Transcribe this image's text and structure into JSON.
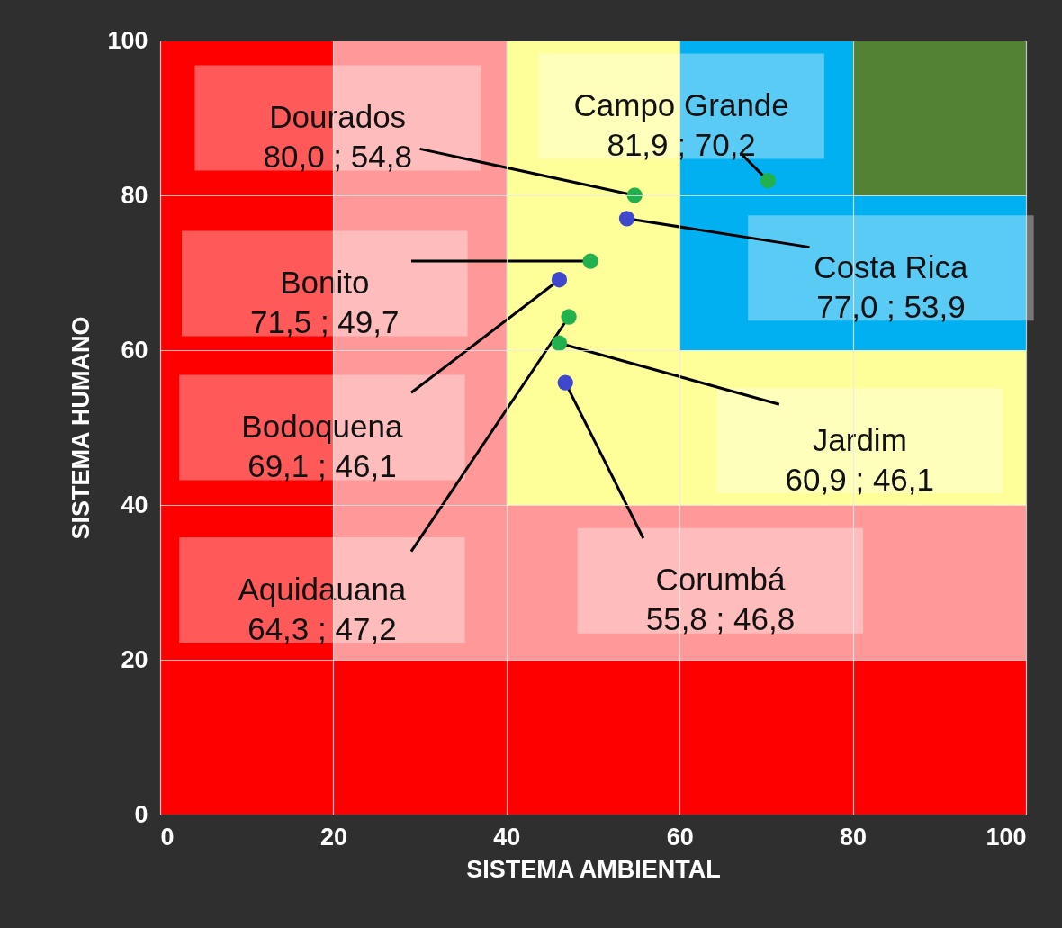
{
  "chart_data": {
    "type": "scatter",
    "xlabel": "SISTEMA AMBIENTAL",
    "ylabel": "SISTEMA HUMANO",
    "xlim": [
      0,
      100
    ],
    "ylim": [
      0,
      100
    ],
    "xticks": [
      0,
      20,
      40,
      60,
      80,
      100
    ],
    "yticks": [
      0,
      20,
      40,
      60,
      80,
      100
    ],
    "grid": true,
    "marker": "circle",
    "bands": [
      {
        "axis": "y",
        "from": 80,
        "to": 100,
        "color": "#548235"
      },
      {
        "axis": "y",
        "from": 0,
        "to": 80,
        "color": "#00b0f0"
      },
      {
        "axis": "x",
        "from": 0,
        "to": 80,
        "color": "#00b0f0"
      },
      {
        "axis": "y",
        "from": 0,
        "to": 60,
        "color": "#ffff99"
      },
      {
        "axis": "x",
        "from": 0,
        "to": 60,
        "color": "#ffff99"
      },
      {
        "axis": "y",
        "from": 0,
        "to": 40,
        "color": "#ff9999"
      },
      {
        "axis": "x",
        "from": 0,
        "to": 40,
        "color": "#ff9999"
      },
      {
        "axis": "y",
        "from": 0,
        "to": 20,
        "color": "#ff0000"
      },
      {
        "axis": "x",
        "from": 0,
        "to": 20,
        "color": "#ff0000"
      }
    ],
    "series": [
      {
        "color": "#22b14c",
        "x": [
          54.8,
          70.2,
          49.7,
          46.1,
          47.2
        ],
        "values": [
          80.0,
          81.9,
          71.5,
          60.9,
          64.3
        ]
      },
      {
        "color": "#3f48cc",
        "x": [
          53.9,
          46.1,
          46.8
        ],
        "values": [
          77.0,
          69.1,
          55.8
        ]
      }
    ],
    "annotations": [
      {
        "text": "Dourados\n80,0 ; 54,8",
        "x": 54.8,
        "y": 80.0
      },
      {
        "text": "Campo Grande\n81,9 ; 70,2",
        "x": 70.2,
        "y": 81.9
      },
      {
        "text": "Bonito\n71,5 ; 49,7",
        "x": 49.7,
        "y": 71.5
      },
      {
        "text": "Jardim\n60,9 ; 46,1",
        "x": 46.1,
        "y": 60.9
      },
      {
        "text": "Aquidauana\n64,3 ; 47,2",
        "x": 47.2,
        "y": 64.3
      },
      {
        "text": "Costa Rica\n77,0 ; 53,9",
        "x": 53.9,
        "y": 77.0
      },
      {
        "text": "Bodoquena\n69,1 ; 46,1",
        "x": 46.1,
        "y": 69.1
      },
      {
        "text": "Corumbá\n55,8 ; 46,8",
        "x": 46.8,
        "y": 55.8
      }
    ]
  }
}
